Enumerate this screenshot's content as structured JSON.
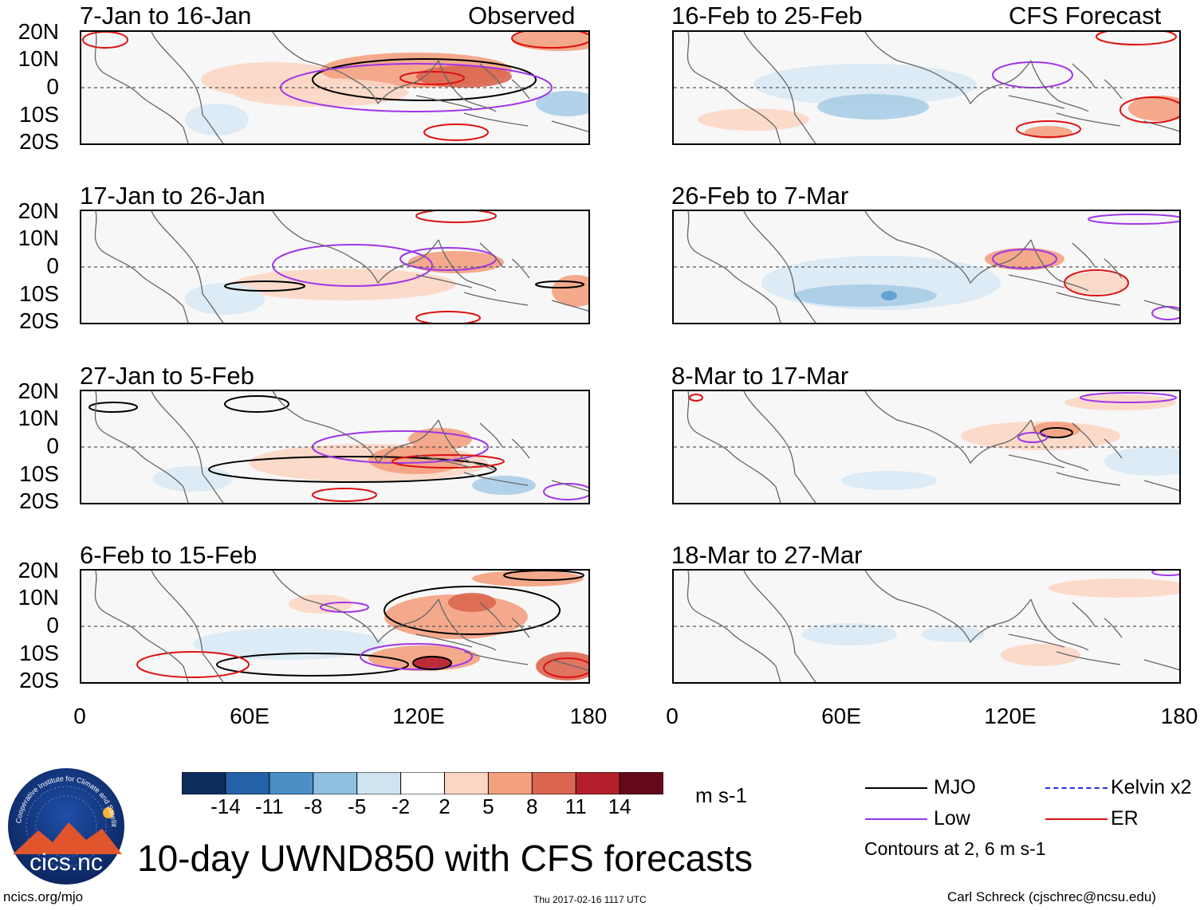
{
  "panels": [
    {
      "title": "7-Jan to 16-Jan",
      "tag": "Observed"
    },
    {
      "title": "16-Feb to 25-Feb",
      "tag": "CFS Forecast"
    },
    {
      "title": "17-Jan to 26-Jan",
      "tag": ""
    },
    {
      "title": "26-Feb to 7-Mar",
      "tag": ""
    },
    {
      "title": "27-Jan to 5-Feb",
      "tag": ""
    },
    {
      "title": "8-Mar to 17-Mar",
      "tag": ""
    },
    {
      "title": "6-Feb to 15-Feb",
      "tag": ""
    },
    {
      "title": "18-Mar to 27-Mar",
      "tag": ""
    }
  ],
  "lat_labels": [
    "20N",
    "10N",
    "0",
    "10S",
    "20S"
  ],
  "lon_labels": [
    "0",
    "60E",
    "120E",
    "180"
  ],
  "colorbar": {
    "colors": [
      "#0d2c5e",
      "#2462a8",
      "#4a8fc6",
      "#8ec0df",
      "#cfe4f1",
      "#ffffff",
      "#fcd6c4",
      "#f3a07f",
      "#dc6650",
      "#b3202c",
      "#66081b"
    ],
    "labels": [
      "-14",
      "-11",
      "-8",
      "-5",
      "-2",
      "2",
      "5",
      "8",
      "11",
      "14"
    ],
    "units": "m s-1"
  },
  "legend": {
    "items": [
      {
        "label": "MJO",
        "color": "#000000"
      },
      {
        "label": "Kelvin x2",
        "color": "#2233dd"
      },
      {
        "label": "Low",
        "color": "#a035e8"
      },
      {
        "label": "ER",
        "color": "#dd1111"
      }
    ],
    "contours_note": "Contours at 2, 6 m s-1"
  },
  "logo": {
    "text": "cics.nc",
    "ring_text": "Cooperative Institute for Climate and Satellites"
  },
  "main_title": "10-day UWND850 with CFS forecasts",
  "footer": {
    "url": "ncics.org/mjo",
    "timestamp": "Thu 2017-02-16 1117 UTC",
    "author": "Carl Schreck (cjschrec@ncsu.edu)"
  }
}
